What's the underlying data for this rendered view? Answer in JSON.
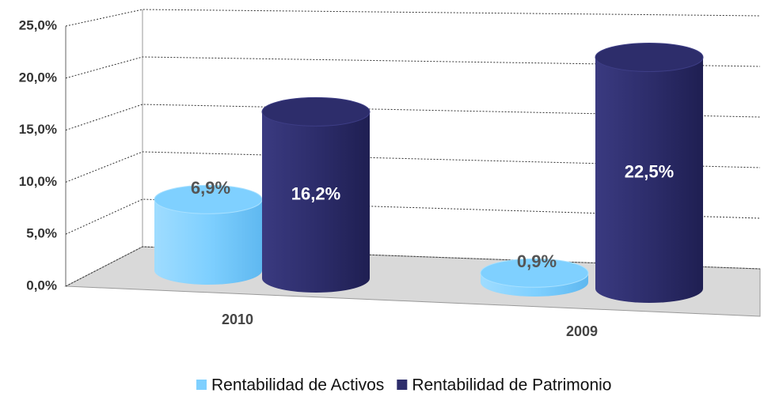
{
  "chart_data": {
    "type": "cylinder-bar",
    "categories": [
      "2010",
      "2009"
    ],
    "series": [
      {
        "name": "Rentabilidad de Activos",
        "color": "#7fd0ff",
        "values": [
          6.9,
          0.9
        ],
        "value_labels": [
          "6,9%",
          "0,9%"
        ]
      },
      {
        "name": "Rentabilidad de Patrimonio",
        "color": "#2d2d6b",
        "values": [
          16.2,
          22.5
        ],
        "value_labels": [
          "16,2%",
          "22,5%"
        ]
      }
    ],
    "ylim": [
      0,
      25
    ],
    "yticks": [
      {
        "value": 0,
        "label": "0,0%"
      },
      {
        "value": 5,
        "label": "5,0%"
      },
      {
        "value": 10,
        "label": "10,0%"
      },
      {
        "value": 15,
        "label": "15,0%"
      },
      {
        "value": 20,
        "label": "20,0%"
      },
      {
        "value": 25,
        "label": "25,0%"
      }
    ],
    "grid": true,
    "legend": "bottom"
  }
}
